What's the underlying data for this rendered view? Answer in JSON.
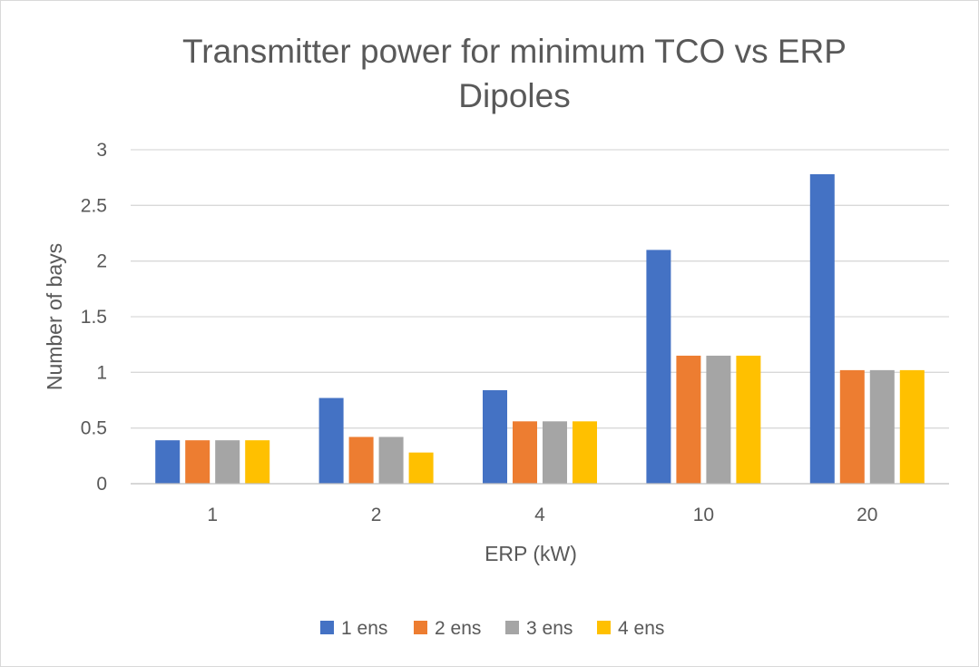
{
  "chart_data": {
    "type": "bar",
    "title": [
      "Transmitter power for minimum TCO vs ERP",
      "Dipoles"
    ],
    "xlabel": "ERP (kW)",
    "ylabel": "Number of bays",
    "categories": [
      "1",
      "2",
      "4",
      "10",
      "20"
    ],
    "ylim": [
      0,
      3
    ],
    "yticks": [
      0,
      0.5,
      1,
      1.5,
      2,
      2.5,
      3
    ],
    "ytick_labels": [
      "0",
      "0.5",
      "1",
      "1.5",
      "2",
      "2.5",
      "3"
    ],
    "grid": true,
    "legend_position": "bottom",
    "series": [
      {
        "name": "1 ens",
        "color": "#4472C4",
        "values": [
          0.39,
          0.77,
          0.84,
          2.1,
          2.78
        ]
      },
      {
        "name": "2 ens",
        "color": "#ED7D31",
        "values": [
          0.39,
          0.42,
          0.56,
          1.15,
          1.02
        ]
      },
      {
        "name": "3 ens",
        "color": "#A5A5A5",
        "values": [
          0.39,
          0.42,
          0.56,
          1.15,
          1.02
        ]
      },
      {
        "name": "4 ens",
        "color": "#FFC000",
        "values": [
          0.39,
          0.28,
          0.56,
          1.15,
          1.02
        ]
      }
    ]
  }
}
